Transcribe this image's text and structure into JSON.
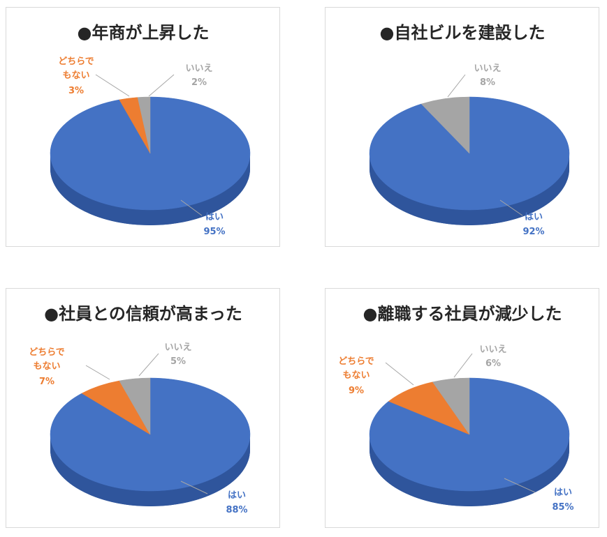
{
  "colors": {
    "yes": "#4472c4",
    "neutral": "#ed7d31",
    "no": "#a5a5a5",
    "title": "#262626"
  },
  "chart_data": [
    {
      "type": "pie",
      "title": "●年商が上昇した",
      "slices": [
        {
          "label": "はい",
          "value": 95,
          "percent_text": "95%"
        },
        {
          "label_lines": [
            "どちらで",
            "もない"
          ],
          "value": 3,
          "percent_text": "3%"
        },
        {
          "label": "いいえ",
          "value": 2,
          "percent_text": "2%"
        }
      ]
    },
    {
      "type": "pie",
      "title": "●自社ビルを建設した",
      "slices": [
        {
          "label": "はい",
          "value": 92,
          "percent_text": "92%"
        },
        {
          "label": "いいえ",
          "value": 8,
          "percent_text": "8%"
        }
      ]
    },
    {
      "type": "pie",
      "title": "●社員との信頼が高まった",
      "slices": [
        {
          "label": "はい",
          "value": 88,
          "percent_text": "88%"
        },
        {
          "label_lines": [
            "どちらで",
            "もない"
          ],
          "value": 7,
          "percent_text": "7%"
        },
        {
          "label": "いいえ",
          "value": 5,
          "percent_text": "5%"
        }
      ]
    },
    {
      "type": "pie",
      "title": "●離職する社員が減少した",
      "slices": [
        {
          "label": "はい",
          "value": 85,
          "percent_text": "85%"
        },
        {
          "label_lines": [
            "どちらで",
            "もない"
          ],
          "value": 9,
          "percent_text": "9%"
        },
        {
          "label": "いいえ",
          "value": 6,
          "percent_text": "6%"
        }
      ]
    }
  ]
}
